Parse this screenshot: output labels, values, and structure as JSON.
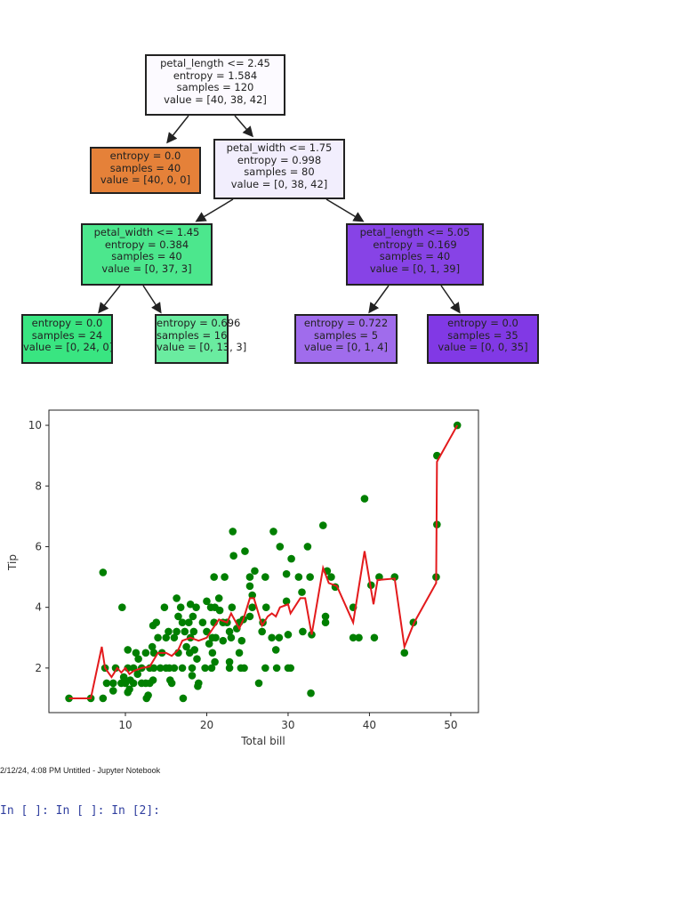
{
  "tree": {
    "nodes": [
      {
        "id": "root",
        "lines": [
          "petal_length <= 2.45",
          "entropy = 1.584",
          "samples = 120",
          "value = [40, 38, 42]"
        ],
        "color": "#fcfaff"
      },
      {
        "id": "left",
        "lines": [
          "entropy = 0.0",
          "samples = 40",
          "value = [40, 0, 0]"
        ],
        "color": "#e58139"
      },
      {
        "id": "right",
        "lines": [
          "petal_width <= 1.75",
          "entropy = 0.998",
          "samples = 80",
          "value = [0, 38, 42]"
        ],
        "color": "#f2eefd"
      },
      {
        "id": "rl",
        "lines": [
          "petal_width <= 1.45",
          "entropy = 0.384",
          "samples = 40",
          "value = [0, 37, 3]"
        ],
        "color": "#4ce78d"
      },
      {
        "id": "rr",
        "lines": [
          "petal_length <= 5.05",
          "entropy = 0.169",
          "samples = 40",
          "value = [0, 1, 39]"
        ],
        "color": "#8743e6"
      },
      {
        "id": "rll",
        "lines": [
          "entropy = 0.0",
          "samples = 24",
          "value = [0, 24, 0]"
        ],
        "color": "#39e581"
      },
      {
        "id": "rlr",
        "lines": [
          "entropy = 0.696",
          "samples = 16",
          "value = [0, 13, 3]"
        ],
        "color": "#6aeca0"
      },
      {
        "id": "rrl",
        "lines": [
          "entropy = 0.722",
          "samples = 5",
          "value = [0, 1, 4]"
        ],
        "color": "#a06cec"
      },
      {
        "id": "rrr",
        "lines": [
          "entropy = 0.0",
          "samples = 35",
          "value = [0, 0, 35]"
        ],
        "color": "#8139e5"
      }
    ]
  },
  "chart_data": {
    "type": "scatter",
    "xlabel": "Total bill",
    "ylabel": "Tip",
    "xlim": [
      0.6,
      53.4
    ],
    "ylim": [
      0.53,
      10.5
    ],
    "xticks": [
      10,
      20,
      30,
      40,
      50
    ],
    "yticks": [
      2,
      4,
      6,
      8,
      10
    ],
    "grid": false,
    "scatter_color": "#007f00",
    "line_color": "#e31a1c",
    "points": [
      [
        3.07,
        1
      ],
      [
        5.75,
        1
      ],
      [
        7.25,
        1
      ],
      [
        7.25,
        5.15
      ],
      [
        7.5,
        2
      ],
      [
        7.7,
        1.5
      ],
      [
        8.5,
        1.5
      ],
      [
        8.8,
        2
      ],
      [
        8.5,
        1.25
      ],
      [
        9.6,
        4
      ],
      [
        9.5,
        1.5
      ],
      [
        9.8,
        1.7
      ],
      [
        10,
        1.5
      ],
      [
        10.3,
        2.6
      ],
      [
        10.3,
        1.2
      ],
      [
        10.5,
        1.3
      ],
      [
        10.3,
        2
      ],
      [
        10.6,
        1.6
      ],
      [
        11,
        2
      ],
      [
        11,
        1.5
      ],
      [
        11.3,
        2.5
      ],
      [
        11.6,
        2.3
      ],
      [
        11.5,
        1.8
      ],
      [
        12,
        2
      ],
      [
        12,
        1.5
      ],
      [
        12.5,
        2.5
      ],
      [
        12.6,
        1
      ],
      [
        12.8,
        1.1
      ],
      [
        12.5,
        1.5
      ],
      [
        13,
        2
      ],
      [
        13,
        1.5
      ],
      [
        13.4,
        3.4
      ],
      [
        13.3,
        2.7
      ],
      [
        13.5,
        2.5
      ],
      [
        13.5,
        2
      ],
      [
        13.4,
        1.6
      ],
      [
        13.8,
        3.5
      ],
      [
        14,
        3
      ],
      [
        14.3,
        2
      ],
      [
        14.5,
        2.5
      ],
      [
        14.8,
        4
      ],
      [
        15,
        3
      ],
      [
        15,
        2
      ],
      [
        15.3,
        3.2
      ],
      [
        15.4,
        2
      ],
      [
        15.5,
        1.6
      ],
      [
        15.7,
        1.5
      ],
      [
        16,
        3
      ],
      [
        16,
        2
      ],
      [
        16.3,
        3.2
      ],
      [
        16.5,
        2.5
      ],
      [
        16.5,
        3.7
      ],
      [
        16.3,
        4.3
      ],
      [
        16.8,
        4
      ],
      [
        17,
        3.5
      ],
      [
        17,
        2
      ],
      [
        17.1,
        1
      ],
      [
        17.3,
        3.2
      ],
      [
        17.5,
        2.7
      ],
      [
        17.8,
        3.5
      ],
      [
        17.9,
        2.5
      ],
      [
        18,
        4.1
      ],
      [
        18,
        3
      ],
      [
        18.2,
        2
      ],
      [
        18.2,
        1.75
      ],
      [
        18.3,
        3.7
      ],
      [
        18.4,
        3.2
      ],
      [
        18.5,
        2.6
      ],
      [
        18.7,
        4
      ],
      [
        18.8,
        2.3
      ],
      [
        18.9,
        1.4
      ],
      [
        19,
        1.5
      ],
      [
        19.5,
        3.5
      ],
      [
        19.8,
        2
      ],
      [
        20,
        4.2
      ],
      [
        20,
        3.2
      ],
      [
        20.3,
        2.8
      ],
      [
        20.5,
        4
      ],
      [
        20.6,
        2
      ],
      [
        20.7,
        3
      ],
      [
        20.7,
        2.5
      ],
      [
        20.9,
        5
      ],
      [
        20.9,
        3.5
      ],
      [
        21,
        2.2
      ],
      [
        21,
        4
      ],
      [
        21.1,
        3
      ],
      [
        21.5,
        4.3
      ],
      [
        21.6,
        3.9
      ],
      [
        22,
        3.5
      ],
      [
        22,
        2.9
      ],
      [
        22.2,
        5
      ],
      [
        22.5,
        3.5
      ],
      [
        22.8,
        3.2
      ],
      [
        22.8,
        2
      ],
      [
        22.8,
        2.2
      ],
      [
        23,
        3
      ],
      [
        23.1,
        4
      ],
      [
        23.2,
        6.5
      ],
      [
        23.3,
        5.7
      ],
      [
        23.7,
        3.3
      ],
      [
        24,
        3.5
      ],
      [
        24.3,
        2.9
      ],
      [
        24,
        2.5
      ],
      [
        24.2,
        2
      ],
      [
        24.5,
        3.6
      ],
      [
        24.6,
        2
      ],
      [
        24.7,
        5.85
      ],
      [
        25.3,
        3.7
      ],
      [
        25.3,
        4.7
      ],
      [
        25.3,
        5
      ],
      [
        25.6,
        4.4
      ],
      [
        25.6,
        4
      ],
      [
        25.9,
        5.2
      ],
      [
        26.4,
        1.5
      ],
      [
        26.8,
        3.2
      ],
      [
        26.9,
        3.5
      ],
      [
        27.2,
        2
      ],
      [
        27.2,
        5
      ],
      [
        27.3,
        4
      ],
      [
        28,
        3
      ],
      [
        28.2,
        6.5
      ],
      [
        28.5,
        2.6
      ],
      [
        28.6,
        2
      ],
      [
        28.9,
        3
      ],
      [
        29,
        6
      ],
      [
        29.8,
        5.1
      ],
      [
        29.8,
        4.2
      ],
      [
        30,
        3.1
      ],
      [
        30,
        2
      ],
      [
        30.3,
        2
      ],
      [
        30.4,
        5.6
      ],
      [
        31.3,
        5
      ],
      [
        31.7,
        4.5
      ],
      [
        31.8,
        3.2
      ],
      [
        32.4,
        6
      ],
      [
        32.7,
        5
      ],
      [
        32.8,
        1.17
      ],
      [
        32.9,
        3.1
      ],
      [
        34.3,
        6.7
      ],
      [
        34.6,
        3.7
      ],
      [
        34.6,
        3.5
      ],
      [
        34.8,
        5.2
      ],
      [
        35.3,
        5
      ],
      [
        35.8,
        4.67
      ],
      [
        38,
        4
      ],
      [
        38,
        3
      ],
      [
        38.7,
        3
      ],
      [
        39.4,
        7.58
      ],
      [
        40.2,
        4.73
      ],
      [
        40.6,
        3
      ],
      [
        41.2,
        5
      ],
      [
        43.1,
        5
      ],
      [
        44.3,
        2.5
      ],
      [
        45.4,
        3.5
      ],
      [
        48.2,
        5
      ],
      [
        48.3,
        6.73
      ],
      [
        48.3,
        9
      ],
      [
        50.8,
        10
      ]
    ],
    "line": [
      [
        3.07,
        1
      ],
      [
        5.75,
        1
      ],
      [
        7.1,
        2.7
      ],
      [
        7.5,
        2
      ],
      [
        8.3,
        1.7
      ],
      [
        9,
        2
      ],
      [
        9.5,
        1.85
      ],
      [
        10,
        2
      ],
      [
        10.5,
        1.8
      ],
      [
        11,
        1.9
      ],
      [
        12,
        2
      ],
      [
        13,
        2.05
      ],
      [
        14,
        2.5
      ],
      [
        15,
        2.5
      ],
      [
        15.7,
        2.4
      ],
      [
        16.5,
        2.6
      ],
      [
        17,
        2.9
      ],
      [
        18,
        3
      ],
      [
        19,
        2.9
      ],
      [
        20,
        3
      ],
      [
        21,
        3.4
      ],
      [
        21.5,
        3.6
      ],
      [
        22.5,
        3.5
      ],
      [
        23,
        3.8
      ],
      [
        24,
        3.3
      ],
      [
        24.5,
        3.6
      ],
      [
        25.3,
        4.3
      ],
      [
        25.8,
        4.3
      ],
      [
        26.8,
        3.4
      ],
      [
        27.5,
        3.7
      ],
      [
        28,
        3.8
      ],
      [
        28.5,
        3.7
      ],
      [
        29,
        4
      ],
      [
        30,
        4.1
      ],
      [
        30.3,
        3.8
      ],
      [
        31.5,
        4.3
      ],
      [
        32.1,
        4.3
      ],
      [
        32.9,
        3.1
      ],
      [
        34.3,
        5.3
      ],
      [
        35,
        4.8
      ],
      [
        36,
        4.7
      ],
      [
        38,
        3.5
      ],
      [
        39.4,
        5.85
      ],
      [
        40.5,
        4.1
      ],
      [
        41,
        4.9
      ],
      [
        43.1,
        4.95
      ],
      [
        44.3,
        2.7
      ],
      [
        45.5,
        3.5
      ],
      [
        48.2,
        4.8
      ],
      [
        48.3,
        8.8
      ],
      [
        50.8,
        10
      ]
    ]
  },
  "footer": {
    "text": "2/12/24, 4:08 PM Untitled - Jupyter Notebook"
  },
  "cells": {
    "text": "In [ ]: In [ ]: In [2]:"
  }
}
